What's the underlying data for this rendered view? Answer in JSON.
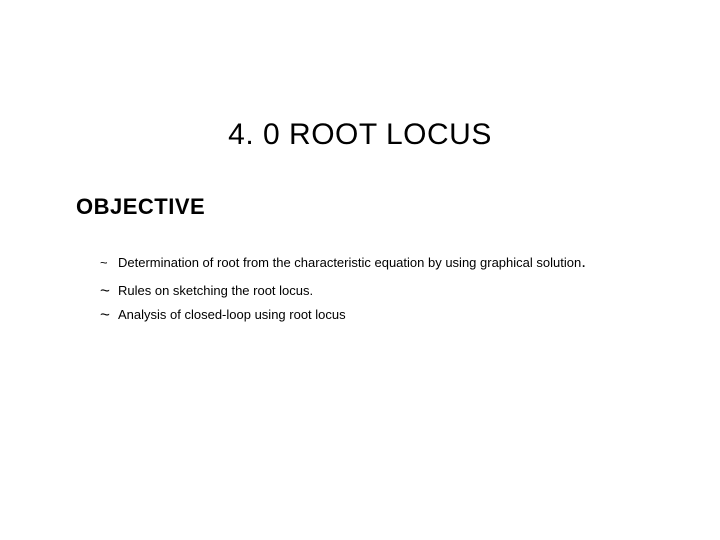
{
  "title": "4. 0 ROOT LOCUS",
  "subtitle": "OBJECTIVE",
  "bullets": {
    "b1": "Determination of root from the characteristic equation by using graphical solution",
    "b1_period": ".",
    "b2": "Rules on sketching the root locus.",
    "b3": "Analysis of closed-loop using root locus"
  },
  "tilde": "~"
}
